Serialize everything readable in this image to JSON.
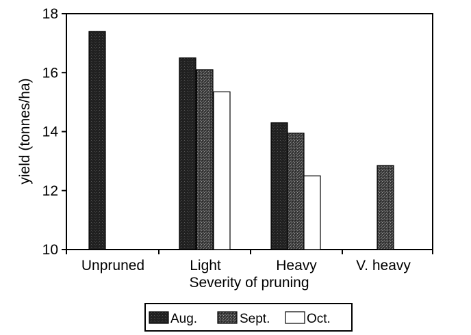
{
  "chart_data": {
    "type": "bar",
    "xlabel": "Severity of pruning",
    "ylabel": "yield (tonnes/ha)",
    "ylim": [
      10,
      18
    ],
    "yticks": [
      10,
      12,
      14,
      16,
      18
    ],
    "categories": [
      "Unpruned",
      "Light",
      "Heavy",
      "V. heavy"
    ],
    "series": [
      {
        "name": "Aug.",
        "fill": "dark",
        "values": [
          17.4,
          16.5,
          14.3,
          null
        ]
      },
      {
        "name": "Sept.",
        "fill": "medium",
        "values": [
          null,
          16.1,
          13.95,
          12.85
        ]
      },
      {
        "name": "Oct.",
        "fill": "white",
        "values": [
          null,
          15.35,
          12.5,
          null
        ]
      }
    ],
    "legend_position": "bottom-center",
    "grid": false
  },
  "colors": {
    "aug": "#1f1f1f",
    "sept": "#4a4a4a",
    "oct": "#ffffff",
    "axis": "#000000"
  }
}
